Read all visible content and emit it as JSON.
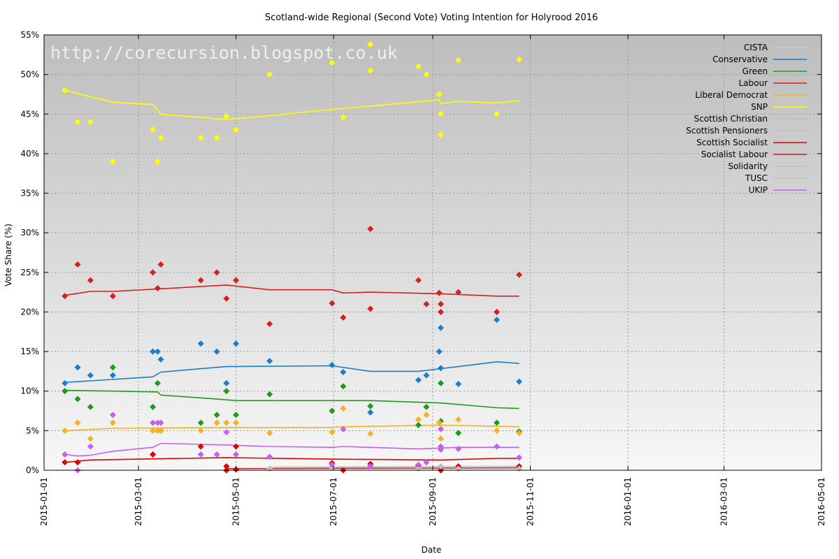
{
  "chart_data": {
    "type": "scatter",
    "title": "Scotland-wide Regional (Second Vote) Voting Intention for Holyrood 2016",
    "xlabel": "Date",
    "ylabel": "Vote Share (%)",
    "watermark": "http://corecursion.blogspot.co.uk",
    "xlim": [
      "2015-01-01",
      "2016-05-01"
    ],
    "ylim": [
      0,
      55
    ],
    "x_ticks": [
      "2015-01-01",
      "2015-03-01",
      "2015-05-01",
      "2015-07-01",
      "2015-09-01",
      "2015-11-01",
      "2016-01-01",
      "2016-03-01",
      "2016-05-01"
    ],
    "y_ticks": [
      0,
      5,
      10,
      15,
      20,
      25,
      30,
      35,
      40,
      45,
      50,
      55
    ],
    "y_tick_labels": [
      "0%",
      "5%",
      "10%",
      "15%",
      "20%",
      "25%",
      "30%",
      "35%",
      "40%",
      "45%",
      "50%",
      "55%"
    ],
    "grid": true,
    "legend_position": "top-right",
    "series": [
      {
        "name": "CISTA",
        "color": "#cccccc",
        "points": [],
        "trend": []
      },
      {
        "name": "Conservative",
        "color": "#1a7ecb",
        "points": [
          [
            "2015-01-14",
            11
          ],
          [
            "2015-01-22",
            13
          ],
          [
            "2015-01-30",
            12
          ],
          [
            "2015-02-13",
            12
          ],
          [
            "2015-03-10",
            15
          ],
          [
            "2015-03-13",
            15
          ],
          [
            "2015-03-15",
            14
          ],
          [
            "2015-04-09",
            16
          ],
          [
            "2015-04-19",
            15
          ],
          [
            "2015-04-25",
            11
          ],
          [
            "2015-05-01",
            16
          ],
          [
            "2015-05-22",
            13.8
          ],
          [
            "2015-06-30",
            13.3
          ],
          [
            "2015-07-07",
            12.4
          ],
          [
            "2015-07-24",
            7.3
          ],
          [
            "2015-08-23",
            11.4
          ],
          [
            "2015-08-28",
            12
          ],
          [
            "2015-09-05",
            15
          ],
          [
            "2015-09-06",
            12.9
          ],
          [
            "2015-09-06",
            18
          ],
          [
            "2015-09-17",
            10.9
          ],
          [
            "2015-10-11",
            19
          ],
          [
            "2015-10-25",
            11.2
          ]
        ],
        "trend": [
          [
            "2015-01-14",
            11.1
          ],
          [
            "2015-03-10",
            11.8
          ],
          [
            "2015-03-15",
            12.4
          ],
          [
            "2015-04-25",
            13.1
          ],
          [
            "2015-06-30",
            13.2
          ],
          [
            "2015-07-24",
            12.5
          ],
          [
            "2015-08-23",
            12.5
          ],
          [
            "2015-09-17",
            13.1
          ],
          [
            "2015-10-11",
            13.7
          ],
          [
            "2015-10-25",
            13.5
          ]
        ]
      },
      {
        "name": "Green",
        "color": "#1f9a1f",
        "points": [
          [
            "2015-01-14",
            10
          ],
          [
            "2015-01-22",
            9
          ],
          [
            "2015-01-30",
            8
          ],
          [
            "2015-02-13",
            13
          ],
          [
            "2015-03-10",
            8
          ],
          [
            "2015-03-13",
            11
          ],
          [
            "2015-03-15",
            5
          ],
          [
            "2015-04-09",
            6
          ],
          [
            "2015-04-19",
            7
          ],
          [
            "2015-04-25",
            10
          ],
          [
            "2015-05-01",
            7
          ],
          [
            "2015-05-22",
            9.6
          ],
          [
            "2015-06-30",
            7.5
          ],
          [
            "2015-07-07",
            10.6
          ],
          [
            "2015-07-24",
            8.1
          ],
          [
            "2015-08-23",
            5.7
          ],
          [
            "2015-08-28",
            8
          ],
          [
            "2015-09-06",
            6.2
          ],
          [
            "2015-09-06",
            11
          ],
          [
            "2015-09-17",
            4.7
          ],
          [
            "2015-10-11",
            6
          ],
          [
            "2015-10-25",
            4.9
          ]
        ],
        "trend": [
          [
            "2015-01-14",
            10.1
          ],
          [
            "2015-02-13",
            10.0
          ],
          [
            "2015-03-13",
            9.9
          ],
          [
            "2015-03-15",
            9.5
          ],
          [
            "2015-04-19",
            9.0
          ],
          [
            "2015-05-01",
            8.8
          ],
          [
            "2015-06-30",
            8.8
          ],
          [
            "2015-07-24",
            8.8
          ],
          [
            "2015-09-06",
            8.5
          ],
          [
            "2015-10-11",
            7.9
          ],
          [
            "2015-10-25",
            7.8
          ]
        ]
      },
      {
        "name": "Labour",
        "color": "#d42020",
        "points": [
          [
            "2015-01-14",
            22
          ],
          [
            "2015-01-22",
            26
          ],
          [
            "2015-01-30",
            24
          ],
          [
            "2015-02-13",
            22
          ],
          [
            "2015-03-10",
            25
          ],
          [
            "2015-03-13",
            23
          ],
          [
            "2015-03-15",
            26
          ],
          [
            "2015-04-09",
            24
          ],
          [
            "2015-04-19",
            25
          ],
          [
            "2015-04-25",
            21.7
          ],
          [
            "2015-05-01",
            24
          ],
          [
            "2015-05-22",
            18.5
          ],
          [
            "2015-06-30",
            21.1
          ],
          [
            "2015-07-07",
            19.3
          ],
          [
            "2015-07-24",
            20.4
          ],
          [
            "2015-07-24",
            30.5
          ],
          [
            "2015-08-23",
            24
          ],
          [
            "2015-08-28",
            21
          ],
          [
            "2015-09-05",
            22.4
          ],
          [
            "2015-09-06",
            21
          ],
          [
            "2015-09-06",
            20
          ],
          [
            "2015-09-17",
            22.5
          ],
          [
            "2015-10-11",
            20
          ],
          [
            "2015-10-25",
            24.7
          ]
        ],
        "trend": [
          [
            "2015-01-14",
            22.1
          ],
          [
            "2015-01-30",
            22.6
          ],
          [
            "2015-02-13",
            22.6
          ],
          [
            "2015-03-13",
            22.9
          ],
          [
            "2015-04-25",
            23.4
          ],
          [
            "2015-05-22",
            22.8
          ],
          [
            "2015-06-30",
            22.8
          ],
          [
            "2015-07-07",
            22.4
          ],
          [
            "2015-07-24",
            22.5
          ],
          [
            "2015-09-06",
            22.3
          ],
          [
            "2015-10-11",
            22.0
          ],
          [
            "2015-10-25",
            22.0
          ]
        ]
      },
      {
        "name": "Liberal Democrat",
        "color": "#f5b027",
        "points": [
          [
            "2015-01-14",
            5
          ],
          [
            "2015-01-22",
            6
          ],
          [
            "2015-01-30",
            4
          ],
          [
            "2015-02-13",
            6
          ],
          [
            "2015-03-10",
            5
          ],
          [
            "2015-03-13",
            5
          ],
          [
            "2015-03-15",
            5
          ],
          [
            "2015-04-09",
            5
          ],
          [
            "2015-04-19",
            6
          ],
          [
            "2015-04-25",
            6
          ],
          [
            "2015-05-01",
            6
          ],
          [
            "2015-05-22",
            4.7
          ],
          [
            "2015-06-30",
            4.8
          ],
          [
            "2015-07-07",
            7.8
          ],
          [
            "2015-07-24",
            4.6
          ],
          [
            "2015-08-23",
            6.4
          ],
          [
            "2015-08-28",
            7
          ],
          [
            "2015-09-05",
            6
          ],
          [
            "2015-09-06",
            4
          ],
          [
            "2015-09-17",
            6.4
          ],
          [
            "2015-10-11",
            5
          ],
          [
            "2015-10-25",
            4.7
          ]
        ],
        "trend": [
          [
            "2015-01-14",
            5.0
          ],
          [
            "2015-02-13",
            5.3
          ],
          [
            "2015-04-25",
            5.4
          ],
          [
            "2015-06-30",
            5.4
          ],
          [
            "2015-07-07",
            5.5
          ],
          [
            "2015-09-06",
            5.7
          ],
          [
            "2015-10-25",
            5.5
          ]
        ]
      },
      {
        "name": "SNP",
        "color": "#ffff00",
        "points": [
          [
            "2015-01-14",
            48
          ],
          [
            "2015-01-22",
            44
          ],
          [
            "2015-01-30",
            44
          ],
          [
            "2015-02-13",
            39
          ],
          [
            "2015-03-10",
            43
          ],
          [
            "2015-03-13",
            39
          ],
          [
            "2015-03-15",
            42
          ],
          [
            "2015-04-09",
            42
          ],
          [
            "2015-04-19",
            42
          ],
          [
            "2015-04-25",
            44.7
          ],
          [
            "2015-05-01",
            43
          ],
          [
            "2015-05-22",
            50
          ],
          [
            "2015-06-30",
            51.5
          ],
          [
            "2015-07-07",
            44.6
          ],
          [
            "2015-07-24",
            53.8
          ],
          [
            "2015-07-24",
            50.5
          ],
          [
            "2015-08-23",
            51
          ],
          [
            "2015-08-28",
            50
          ],
          [
            "2015-09-05",
            47.5
          ],
          [
            "2015-09-06",
            45
          ],
          [
            "2015-09-06",
            42.4
          ],
          [
            "2015-09-17",
            51.8
          ],
          [
            "2015-10-11",
            45
          ],
          [
            "2015-10-25",
            51.9
          ]
        ],
        "trend": [
          [
            "2015-01-14",
            48.0
          ],
          [
            "2015-02-13",
            46.5
          ],
          [
            "2015-03-10",
            46.2
          ],
          [
            "2015-03-15",
            45.0
          ],
          [
            "2015-04-25",
            44.3
          ],
          [
            "2015-05-22",
            44.8
          ],
          [
            "2015-06-30",
            45.6
          ],
          [
            "2015-07-24",
            46.0
          ],
          [
            "2015-09-05",
            46.8
          ],
          [
            "2015-09-06",
            46.3
          ],
          [
            "2015-09-17",
            46.6
          ],
          [
            "2015-10-11",
            46.4
          ],
          [
            "2015-10-25",
            46.7
          ]
        ]
      },
      {
        "name": "Scottish Christian",
        "color": "#c0c0c0",
        "points": [],
        "trend": []
      },
      {
        "name": "Scottish Pensioners",
        "color": "#c0c0c0",
        "points": [],
        "trend": []
      },
      {
        "name": "Scottish Socialist",
        "color": "#e00000",
        "points": [
          [
            "2015-01-14",
            1
          ],
          [
            "2015-01-22",
            1
          ],
          [
            "2015-03-10",
            2
          ],
          [
            "2015-04-09",
            3
          ],
          [
            "2015-04-25",
            0.5
          ],
          [
            "2015-04-25",
            0
          ],
          [
            "2015-05-01",
            3
          ],
          [
            "2015-05-01",
            0.1
          ],
          [
            "2015-06-30",
            0.9
          ],
          [
            "2015-07-07",
            0
          ],
          [
            "2015-07-24",
            0.8
          ],
          [
            "2015-08-23",
            0.6
          ],
          [
            "2015-09-06",
            0
          ],
          [
            "2015-09-17",
            0.5
          ],
          [
            "2015-10-25",
            0.5
          ]
        ],
        "trend": [
          [
            "2015-01-14",
            1.0
          ],
          [
            "2015-01-30",
            1.3
          ],
          [
            "2015-04-25",
            1.6
          ],
          [
            "2015-06-30",
            1.4
          ],
          [
            "2015-09-06",
            1.3
          ],
          [
            "2015-10-11",
            1.5
          ],
          [
            "2015-10-25",
            1.5
          ]
        ]
      },
      {
        "name": "Socialist Labour",
        "color": "#cc2020",
        "points": [],
        "trend": [
          [
            "2015-04-25",
            0.2
          ],
          [
            "2015-10-25",
            0.3
          ]
        ]
      },
      {
        "name": "Solidarity",
        "color": "#c0c0c0",
        "points": [
          [
            "2015-05-22",
            0.2
          ],
          [
            "2015-06-30",
            0.3
          ],
          [
            "2015-08-23",
            0.2
          ],
          [
            "2015-09-06",
            0.5
          ],
          [
            "2015-09-17",
            0.2
          ],
          [
            "2015-10-25",
            0.2
          ]
        ],
        "trend": [
          [
            "2015-05-22",
            0.4
          ],
          [
            "2015-10-25",
            0.5
          ]
        ]
      },
      {
        "name": "TUSC",
        "color": "#c0c0c0",
        "points": [],
        "trend": []
      },
      {
        "name": "UKIP",
        "color": "#c660f0",
        "points": [
          [
            "2015-01-14",
            2
          ],
          [
            "2015-01-22",
            0
          ],
          [
            "2015-01-30",
            3
          ],
          [
            "2015-02-13",
            7
          ],
          [
            "2015-03-10",
            6
          ],
          [
            "2015-03-13",
            6
          ],
          [
            "2015-03-15",
            6
          ],
          [
            "2015-04-09",
            2
          ],
          [
            "2015-04-19",
            2
          ],
          [
            "2015-04-25",
            4.8
          ],
          [
            "2015-05-01",
            2
          ],
          [
            "2015-05-22",
            1.7
          ],
          [
            "2015-06-30",
            0.7
          ],
          [
            "2015-07-07",
            5.2
          ],
          [
            "2015-07-24",
            0.5
          ],
          [
            "2015-08-23",
            0.7
          ],
          [
            "2015-08-28",
            1
          ],
          [
            "2015-09-06",
            2.6
          ],
          [
            "2015-09-06",
            3
          ],
          [
            "2015-09-06",
            5.2
          ],
          [
            "2015-09-17",
            2.7
          ],
          [
            "2015-10-11",
            3
          ],
          [
            "2015-10-25",
            1.6
          ]
        ],
        "trend": [
          [
            "2015-01-14",
            2.0
          ],
          [
            "2015-01-22",
            1.8
          ],
          [
            "2015-01-30",
            1.9
          ],
          [
            "2015-02-13",
            2.4
          ],
          [
            "2015-03-10",
            2.9
          ],
          [
            "2015-03-15",
            3.4
          ],
          [
            "2015-04-25",
            3.2
          ],
          [
            "2015-05-22",
            3.0
          ],
          [
            "2015-06-30",
            2.9
          ],
          [
            "2015-07-07",
            3.0
          ],
          [
            "2015-08-23",
            2.7
          ],
          [
            "2015-09-06",
            2.8
          ],
          [
            "2015-09-17",
            2.9
          ],
          [
            "2015-10-25",
            2.9
          ]
        ]
      }
    ]
  }
}
